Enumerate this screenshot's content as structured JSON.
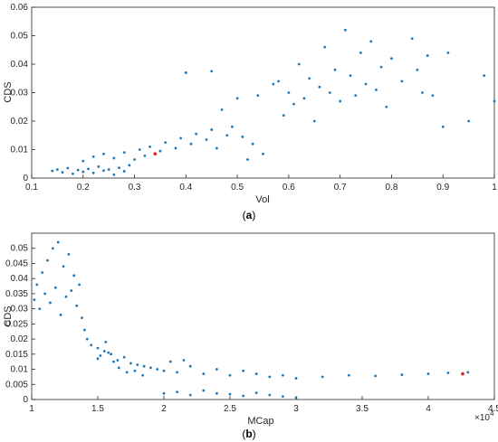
{
  "chart_data": [
    {
      "type": "scatter",
      "panel_label": "a",
      "xlabel": "Vol",
      "ylabel": "CDS",
      "xlim": [
        0.1,
        1.0
      ],
      "ylim": [
        0,
        0.06
      ],
      "xticks": [
        "0.1",
        "0.2",
        "0.3",
        "0.4",
        "0.5",
        "0.6",
        "0.7",
        "0.8",
        "0.9",
        "1"
      ],
      "yticks": [
        "0",
        "0.01",
        "0.02",
        "0.03",
        "0.04",
        "0.05",
        "0.06"
      ],
      "grid": false,
      "point_color": "#1f77b4",
      "highlight_color": "#d62728",
      "highlight_point": {
        "x": 0.34,
        "y": 0.0085
      },
      "series": [
        {
          "points": [
            [
              0.14,
              0.0025
            ],
            [
              0.15,
              0.003
            ],
            [
              0.16,
              0.002
            ],
            [
              0.17,
              0.0035
            ],
            [
              0.18,
              0.0015
            ],
            [
              0.19,
              0.0028
            ],
            [
              0.2,
              0.0022
            ],
            [
              0.21,
              0.0032
            ],
            [
              0.22,
              0.0018
            ],
            [
              0.23,
              0.004
            ],
            [
              0.24,
              0.0026
            ],
            [
              0.25,
              0.003
            ],
            [
              0.26,
              0.0012
            ],
            [
              0.27,
              0.0036
            ],
            [
              0.28,
              0.0024
            ],
            [
              0.29,
              0.0045
            ],
            [
              0.2,
              0.006
            ],
            [
              0.22,
              0.0075
            ],
            [
              0.24,
              0.0085
            ],
            [
              0.26,
              0.007
            ],
            [
              0.28,
              0.009
            ],
            [
              0.3,
              0.0065
            ],
            [
              0.31,
              0.01
            ],
            [
              0.32,
              0.0078
            ],
            [
              0.33,
              0.011
            ],
            [
              0.35,
              0.0095
            ],
            [
              0.36,
              0.0125
            ],
            [
              0.38,
              0.0105
            ],
            [
              0.39,
              0.014
            ],
            [
              0.41,
              0.012
            ],
            [
              0.42,
              0.0155
            ],
            [
              0.44,
              0.0135
            ],
            [
              0.45,
              0.017
            ],
            [
              0.46,
              0.0105
            ],
            [
              0.48,
              0.015
            ],
            [
              0.49,
              0.018
            ],
            [
              0.51,
              0.0145
            ],
            [
              0.52,
              0.0065
            ],
            [
              0.53,
              0.012
            ],
            [
              0.55,
              0.0085
            ],
            [
              0.58,
              0.034
            ],
            [
              0.59,
              0.022
            ],
            [
              0.6,
              0.03
            ],
            [
              0.61,
              0.026
            ],
            [
              0.62,
              0.04
            ],
            [
              0.63,
              0.028
            ],
            [
              0.64,
              0.035
            ],
            [
              0.65,
              0.02
            ],
            [
              0.66,
              0.032
            ],
            [
              0.67,
              0.046
            ],
            [
              0.68,
              0.03
            ],
            [
              0.69,
              0.038
            ],
            [
              0.7,
              0.027
            ],
            [
              0.71,
              0.052
            ],
            [
              0.72,
              0.036
            ],
            [
              0.73,
              0.029
            ],
            [
              0.74,
              0.044
            ],
            [
              0.75,
              0.033
            ],
            [
              0.76,
              0.048
            ],
            [
              0.77,
              0.031
            ],
            [
              0.78,
              0.039
            ],
            [
              0.79,
              0.025
            ],
            [
              0.8,
              0.042
            ],
            [
              0.82,
              0.034
            ],
            [
              0.84,
              0.049
            ],
            [
              0.85,
              0.038
            ],
            [
              0.86,
              0.03
            ],
            [
              0.87,
              0.043
            ],
            [
              0.88,
              0.029
            ],
            [
              0.9,
              0.018
            ],
            [
              0.91,
              0.044
            ],
            [
              0.95,
              0.02
            ],
            [
              0.98,
              0.036
            ],
            [
              1.0,
              0.027
            ],
            [
              0.4,
              0.037
            ],
            [
              0.45,
              0.0375
            ],
            [
              0.47,
              0.024
            ],
            [
              0.5,
              0.028
            ],
            [
              0.54,
              0.029
            ],
            [
              0.57,
              0.033
            ]
          ]
        }
      ]
    },
    {
      "type": "scatter",
      "panel_label": "b",
      "xlabel": "MCap",
      "ylabel": "CDS",
      "xlim": [
        1.0,
        4.5
      ],
      "ylim": [
        0,
        0.055
      ],
      "x_multiplier": "×10",
      "x_multiplier_exp": "4",
      "xticks": [
        "1",
        "1.5",
        "2",
        "2.5",
        "3",
        "3.5",
        "4",
        "4.5"
      ],
      "yticks": [
        "0",
        "0.005",
        "0.01",
        "0.015",
        "0.02",
        "0.025",
        "0.03",
        "0.035",
        "0.04",
        "0.045",
        "0.05"
      ],
      "grid": false,
      "point_color": "#1f77b4",
      "highlight_color": "#d62728",
      "highlight_point": {
        "x": 4.26,
        "y": 0.0085
      },
      "series": [
        {
          "points": [
            [
              1.02,
              0.033
            ],
            [
              1.04,
              0.038
            ],
            [
              1.06,
              0.03
            ],
            [
              1.08,
              0.042
            ],
            [
              1.1,
              0.035
            ],
            [
              1.12,
              0.046
            ],
            [
              1.14,
              0.032
            ],
            [
              1.16,
              0.05
            ],
            [
              1.18,
              0.037
            ],
            [
              1.2,
              0.052
            ],
            [
              1.22,
              0.028
            ],
            [
              1.24,
              0.044
            ],
            [
              1.26,
              0.034
            ],
            [
              1.28,
              0.048
            ],
            [
              1.3,
              0.036
            ],
            [
              1.32,
              0.041
            ],
            [
              1.34,
              0.031
            ],
            [
              1.36,
              0.038
            ],
            [
              1.38,
              0.027
            ],
            [
              1.4,
              0.023
            ],
            [
              1.42,
              0.02
            ],
            [
              1.45,
              0.018
            ],
            [
              1.5,
              0.017
            ],
            [
              1.55,
              0.016
            ],
            [
              1.6,
              0.015
            ],
            [
              1.65,
              0.013
            ],
            [
              1.7,
              0.014
            ],
            [
              1.75,
              0.012
            ],
            [
              1.8,
              0.0115
            ],
            [
              1.85,
              0.011
            ],
            [
              1.9,
              0.0105
            ],
            [
              1.95,
              0.01
            ],
            [
              2.0,
              0.0095
            ],
            [
              2.1,
              0.009
            ],
            [
              2.2,
              0.011
            ],
            [
              2.3,
              0.0085
            ],
            [
              2.4,
              0.01
            ],
            [
              2.5,
              0.008
            ],
            [
              2.6,
              0.0095
            ],
            [
              2.7,
              0.0085
            ],
            [
              2.8,
              0.0075
            ],
            [
              2.9,
              0.008
            ],
            [
              3.0,
              0.007
            ],
            [
              3.2,
              0.0075
            ],
            [
              3.4,
              0.008
            ],
            [
              3.6,
              0.0078
            ],
            [
              3.8,
              0.0082
            ],
            [
              4.0,
              0.0085
            ],
            [
              4.15,
              0.0088
            ],
            [
              4.3,
              0.009
            ],
            [
              2.0,
              0.002
            ],
            [
              2.1,
              0.0025
            ],
            [
              2.2,
              0.0015
            ],
            [
              2.3,
              0.003
            ],
            [
              2.4,
              0.002
            ],
            [
              2.5,
              0.0018
            ],
            [
              2.6,
              0.0012
            ],
            [
              2.7,
              0.0022
            ],
            [
              2.8,
              0.0015
            ],
            [
              2.9,
              0.001
            ],
            [
              3.0,
              0.0006
            ],
            [
              1.5,
              0.0135
            ],
            [
              1.52,
              0.0145
            ],
            [
              1.56,
              0.019
            ],
            [
              1.58,
              0.0155
            ],
            [
              1.62,
              0.0125
            ],
            [
              1.66,
              0.0105
            ],
            [
              1.72,
              0.009
            ],
            [
              1.78,
              0.0095
            ],
            [
              1.84,
              0.008
            ],
            [
              2.05,
              0.0125
            ],
            [
              2.15,
              0.013
            ]
          ]
        }
      ]
    }
  ]
}
